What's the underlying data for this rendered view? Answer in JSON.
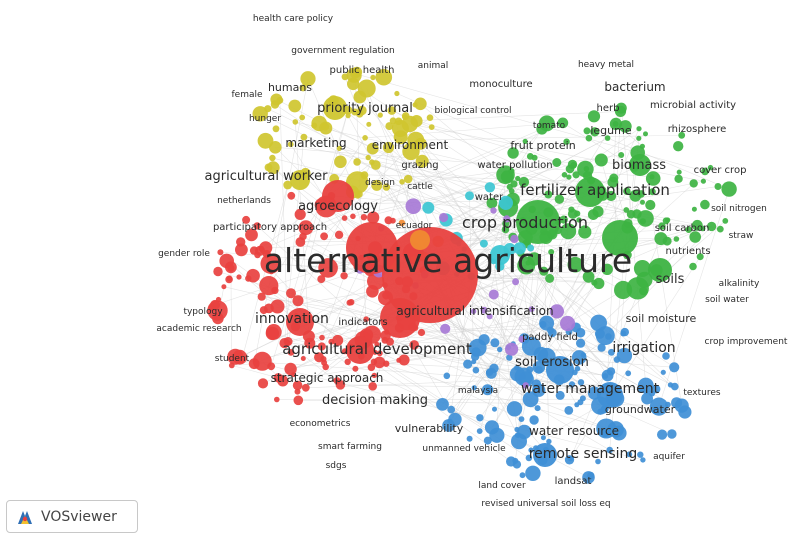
{
  "colors": {
    "red": "#e8413f",
    "green": "#3db342",
    "yellow": "#cfc62f",
    "blue": "#3f8fd6",
    "purple": "#a77ad6",
    "cyan": "#3cc6d3",
    "orange": "#f08a32",
    "link": "#cfcfcf"
  },
  "brand": {
    "name": "VOSviewer",
    "icon": "vosviewer-logo-icon"
  },
  "clusters": {
    "red": [
      "alternative agriculture",
      "agroecology",
      "ecuador",
      "netherlands",
      "participatory approach",
      "gender role",
      "typology",
      "academic research",
      "innovation",
      "indicators",
      "student",
      "agricultural development",
      "strategic approach",
      "decision making",
      "econometrics",
      "smart farming",
      "sdgs"
    ],
    "green": [
      "heavy metal",
      "monoculture",
      "bacterium",
      "herb",
      "microbial activity",
      "legume",
      "rhizosphere",
      "tomato",
      "fruit protein",
      "biomass",
      "cover crop",
      "fertilizer application",
      "crop production",
      "soil nitrogen",
      "soil carbon",
      "straw",
      "nutrients",
      "alkalinity",
      "soils",
      "soil water",
      "soil moisture"
    ],
    "yellow": [
      "health care policy",
      "government regulation",
      "animal",
      "public health",
      "humans",
      "female",
      "priority journal",
      "hunger",
      "marketing",
      "environment",
      "grazing",
      "agricultural worker",
      "design",
      "cattle"
    ],
    "blue": [
      "agricultural intensification",
      "paddy field",
      "crop improvement",
      "irrigation",
      "soil erosion",
      "water management",
      "malaysia",
      "textures",
      "groundwater",
      "vulnerability",
      "water resource",
      "unmanned vehicle",
      "remote sensing",
      "aquifer",
      "landsat",
      "land cover",
      "revised universal soil loss eq"
    ],
    "other": [
      "biological control",
      "water pollution",
      "water"
    ]
  }
}
